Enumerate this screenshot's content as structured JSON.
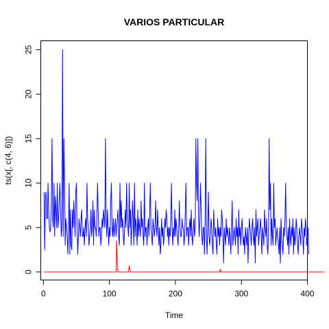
{
  "chart_data": {
    "type": "line",
    "title": "VARIOS PARTICULAR",
    "xlabel": "Time",
    "ylabel": "ts(x[, c(4, 6)])",
    "xlim": [
      1,
      385
    ],
    "ylim": [
      0,
      25
    ],
    "x_ticks": [
      "0",
      "100",
      "200",
      "300",
      "400"
    ],
    "y_ticks": [
      "0",
      "5",
      "10",
      "15",
      "20",
      "25"
    ],
    "grid": false,
    "legend": "none",
    "series": [
      {
        "color": "#0000ff",
        "x_start": 1,
        "values": [
          9,
          2.5,
          8.5,
          9,
          6,
          6,
          10,
          7,
          5,
          4.5,
          5,
          8,
          15,
          6,
          5,
          10,
          4,
          8.5,
          7,
          5,
          10,
          5,
          6,
          8,
          10,
          7,
          4,
          5,
          25,
          4,
          15,
          10,
          3,
          6,
          5,
          4,
          2,
          5,
          10,
          2,
          7,
          3,
          2.5,
          7,
          5,
          8,
          6,
          4,
          9,
          10,
          5,
          2,
          4,
          6,
          5,
          4,
          6,
          7,
          4,
          4,
          5,
          3,
          5,
          6,
          4,
          10,
          6,
          5,
          3,
          4,
          5,
          7,
          4,
          5,
          8,
          3,
          7,
          5,
          5,
          4,
          6,
          10,
          7,
          4,
          5,
          5,
          3,
          4,
          6,
          5,
          7,
          6,
          5,
          15,
          6,
          4,
          7,
          5,
          3,
          5,
          4,
          8,
          10,
          5,
          4,
          6,
          4,
          5,
          6,
          4,
          5,
          6,
          7,
          4,
          3,
          10,
          5,
          8,
          5,
          6,
          4,
          3,
          5,
          7,
          5,
          10,
          6,
          5,
          4,
          10,
          5,
          7,
          3,
          5,
          8,
          6,
          3,
          10,
          4,
          6,
          5,
          3,
          7,
          4,
          6,
          5,
          4,
          8,
          5,
          6,
          4,
          3,
          10,
          4,
          5,
          5,
          3,
          5,
          6,
          4,
          7,
          10,
          5,
          4,
          3,
          6,
          5,
          4,
          5,
          8,
          5,
          4,
          7,
          5,
          3,
          5,
          2,
          3,
          6,
          4,
          5,
          3,
          4,
          6,
          5,
          7,
          6,
          4,
          5,
          3,
          5,
          4,
          6,
          10,
          5,
          3,
          5,
          4,
          7,
          4,
          6,
          5,
          4,
          3,
          5,
          8,
          5,
          4,
          4,
          6,
          5,
          5,
          3,
          4,
          7,
          10,
          4,
          5,
          5,
          3,
          5,
          6,
          4,
          7,
          4,
          3,
          5,
          6,
          4,
          5,
          15,
          10,
          8,
          15,
          6,
          4,
          6,
          10,
          7,
          4,
          3,
          5,
          5,
          2,
          6,
          15,
          4,
          2,
          5,
          9,
          4,
          3,
          4,
          6,
          5,
          3,
          2,
          7,
          5,
          4,
          5,
          3,
          2,
          6,
          4,
          5,
          3,
          5,
          4,
          7,
          6,
          4,
          1,
          5,
          4,
          3,
          6,
          4,
          5,
          4,
          3,
          5,
          4,
          2,
          5,
          8,
          3,
          4,
          5,
          4,
          3,
          6,
          4,
          5,
          2,
          7,
          4,
          5,
          3,
          5,
          6,
          4,
          3,
          4,
          2,
          5,
          4,
          3,
          5,
          1,
          4,
          6,
          5,
          4,
          3,
          5,
          6,
          4,
          3,
          5,
          1,
          7,
          4,
          5,
          6,
          3,
          4,
          5,
          6,
          4,
          2,
          5,
          4,
          3,
          7,
          5,
          4,
          6,
          3,
          2,
          4,
          15,
          7,
          10,
          3,
          6,
          4,
          3,
          10,
          5,
          6,
          3,
          4,
          5,
          4,
          3,
          2,
          5,
          1,
          6,
          4,
          3,
          2,
          5,
          4,
          6,
          10,
          5,
          4,
          3,
          5,
          2,
          6,
          4,
          3,
          5,
          4,
          6,
          2,
          5,
          3,
          4,
          6,
          5,
          3,
          2,
          4,
          5,
          4,
          3,
          6,
          5,
          4,
          2,
          5,
          4,
          6,
          5,
          3,
          4,
          5,
          2
        ]
      },
      {
        "color": "#ff0000",
        "x_start": 1,
        "values": [
          0,
          0,
          0,
          0,
          0,
          0,
          0,
          0,
          0,
          0,
          0,
          0,
          0,
          0,
          0,
          0,
          0,
          0,
          0,
          0,
          0,
          0,
          0,
          0,
          0,
          0,
          0,
          0,
          0,
          0,
          0,
          0,
          0,
          0,
          0,
          0,
          0,
          0,
          0,
          0,
          0,
          0,
          0,
          0,
          0,
          0,
          0,
          0,
          0,
          0,
          0,
          0,
          0,
          0,
          0,
          0,
          0,
          0,
          0,
          0,
          0,
          0,
          0,
          0,
          0,
          0,
          0,
          0,
          0,
          0,
          0,
          0,
          0,
          0,
          0,
          0,
          0,
          0,
          0,
          0,
          0,
          0,
          0,
          0,
          0,
          0,
          0,
          0,
          0,
          0,
          0,
          0,
          0,
          0,
          0,
          0,
          0,
          0,
          0,
          0,
          0,
          0,
          0,
          0,
          0,
          0,
          0,
          0,
          0,
          0,
          3.5,
          1,
          0,
          0,
          0,
          0,
          0,
          0,
          0,
          0,
          0,
          0,
          0,
          0,
          0,
          0,
          0,
          0,
          0,
          0.7,
          0.3,
          0,
          0,
          0,
          0,
          0,
          0,
          0,
          0,
          0,
          0,
          0,
          0,
          0,
          0,
          0,
          0,
          0,
          0,
          0,
          0,
          0,
          0,
          0,
          0,
          0,
          0,
          0,
          0,
          0,
          0,
          0,
          0,
          0,
          0,
          0,
          0,
          0,
          0,
          0,
          0,
          0,
          0,
          0,
          0,
          0,
          0,
          0,
          0,
          0,
          0,
          0,
          0,
          0,
          0,
          0,
          0,
          0,
          0,
          0,
          0,
          0,
          0,
          0,
          0,
          0,
          0,
          0,
          0,
          0,
          0,
          0,
          0,
          0,
          0,
          0,
          0,
          0,
          0,
          0,
          0,
          0,
          0,
          0,
          0,
          0,
          0,
          0,
          0,
          0,
          0,
          0,
          0,
          0,
          0,
          0,
          0,
          0,
          0,
          0,
          0,
          0,
          0,
          0,
          0,
          0,
          0,
          0,
          0,
          0,
          0,
          0,
          0,
          0,
          0,
          0,
          0,
          0,
          0,
          0,
          0,
          0,
          0,
          0,
          0,
          0,
          0,
          0,
          0,
          0,
          0,
          0,
          0,
          0,
          0,
          0,
          0,
          0.3,
          0,
          0,
          0,
          0,
          0,
          0,
          0,
          0,
          0,
          0,
          0,
          0,
          0,
          0,
          0,
          0,
          0,
          0,
          0,
          0,
          0,
          0,
          0,
          0,
          0,
          0,
          0,
          0,
          0,
          0,
          0,
          0,
          0,
          0,
          0,
          0,
          0,
          0,
          0,
          0,
          0,
          0,
          0,
          0,
          0,
          0,
          0,
          0,
          0,
          0,
          0,
          0,
          0,
          0,
          0,
          0,
          0,
          0,
          0,
          0,
          0,
          0,
          0,
          0,
          0,
          0,
          0,
          0,
          0,
          0,
          0,
          0,
          0,
          0,
          0,
          0,
          0,
          0,
          0,
          0,
          0,
          0,
          0,
          0,
          0,
          0,
          0,
          0,
          0,
          0,
          0,
          0,
          0,
          0,
          0,
          0,
          0,
          0,
          0,
          0,
          0,
          0,
          0,
          0,
          0,
          0,
          0,
          0,
          0,
          0,
          0,
          0,
          0,
          0,
          0,
          0,
          0,
          0,
          0,
          0,
          0,
          0,
          0,
          0,
          0,
          0,
          0,
          0,
          0,
          0,
          0,
          0,
          0,
          0,
          0,
          0,
          0,
          0,
          0,
          0,
          0,
          0,
          0,
          0,
          0,
          0,
          0,
          0,
          0,
          0,
          0,
          0,
          0,
          0,
          0,
          0,
          0,
          0
        ]
      }
    ]
  }
}
